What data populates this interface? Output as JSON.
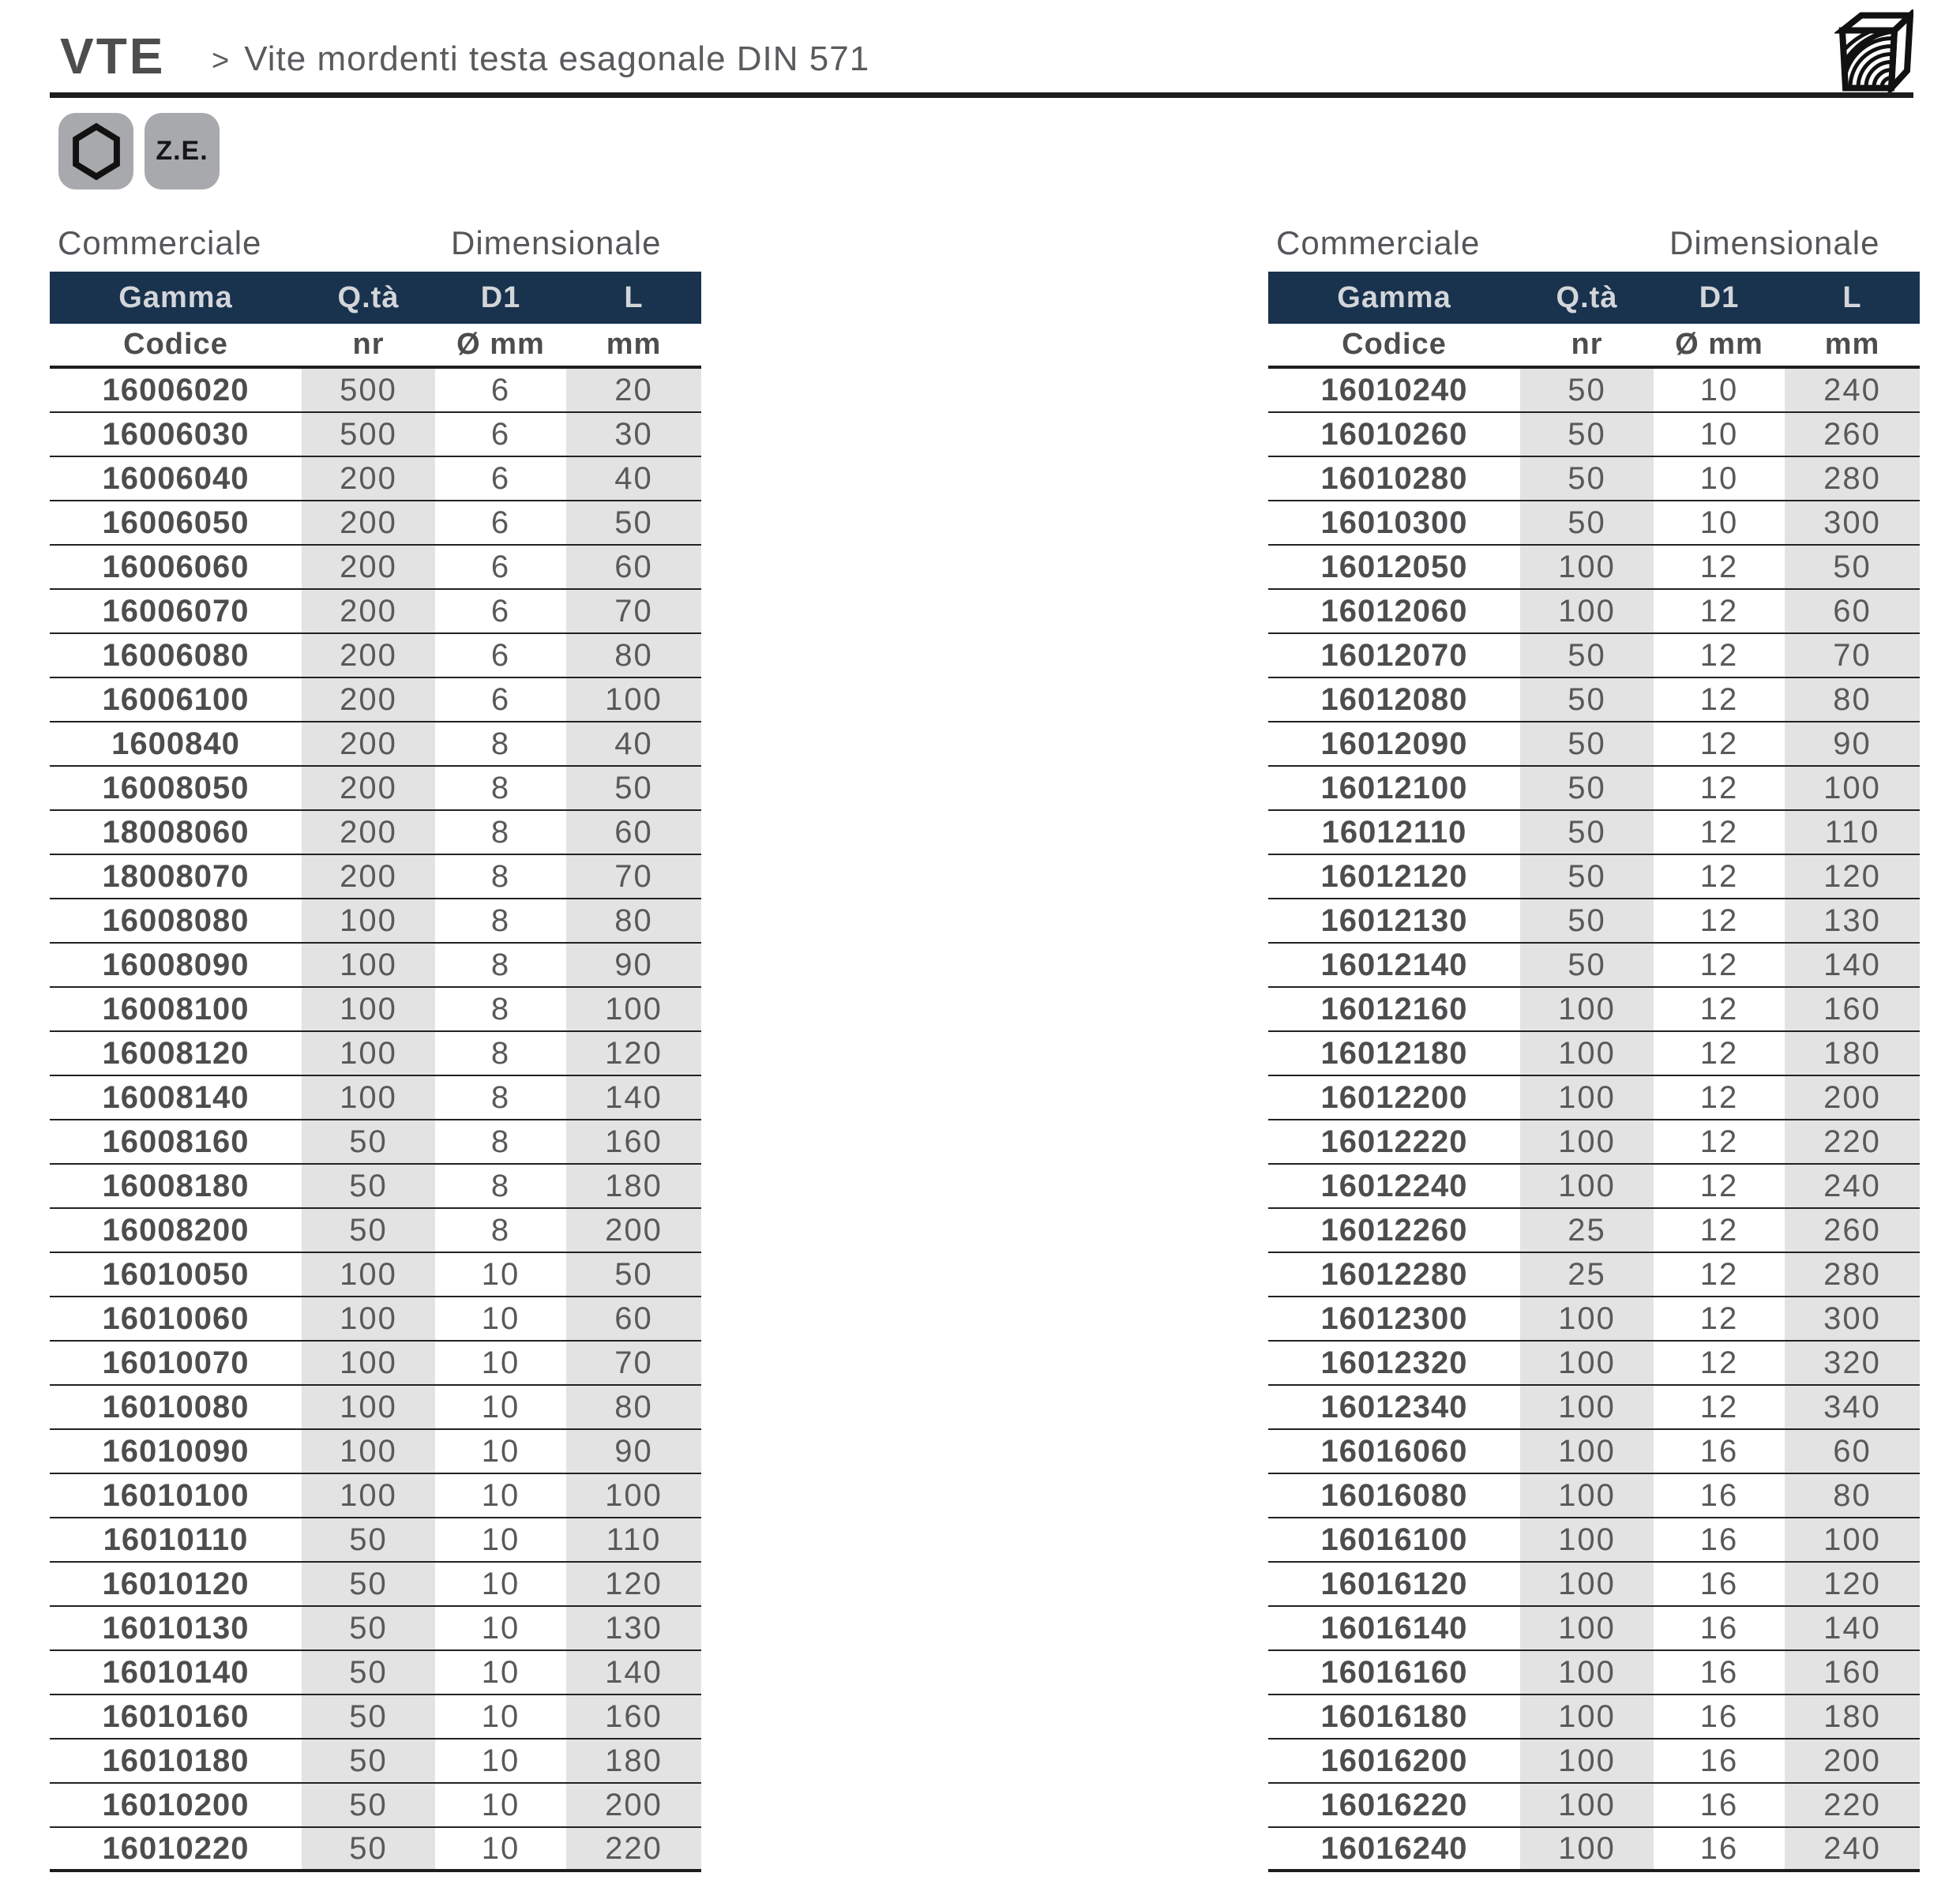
{
  "page": {
    "code": "VTE",
    "separator": ">",
    "title": "Vite mordenti testa esagonale DIN 571"
  },
  "badges": {
    "hex_icon": "hexagon-icon",
    "ze": "Z.E."
  },
  "icons": {
    "material": "wood-cube-icon"
  },
  "colors": {
    "header_bg": "#19324e",
    "header_text": "#d3d6d9",
    "column_shade": "#e3e3e4",
    "line": "#1d1d1b",
    "text": "#58595b",
    "text_bold": "#4c4d4f",
    "badge_bg": "#a7a9ac"
  },
  "table_labels": {
    "commercial": "Commerciale",
    "dimensional": "Dimensionale",
    "col_groups": [
      "Gamma",
      "Q.tà",
      "D1",
      "L"
    ],
    "col_units": [
      "Codice",
      "nr",
      "Ø mm",
      "mm"
    ]
  },
  "tables": [
    {
      "rows": [
        [
          "16006020",
          "500",
          "6",
          "20"
        ],
        [
          "16006030",
          "500",
          "6",
          "30"
        ],
        [
          "16006040",
          "200",
          "6",
          "40"
        ],
        [
          "16006050",
          "200",
          "6",
          "50"
        ],
        [
          "16006060",
          "200",
          "6",
          "60"
        ],
        [
          "16006070",
          "200",
          "6",
          "70"
        ],
        [
          "16006080",
          "200",
          "6",
          "80"
        ],
        [
          "16006100",
          "200",
          "6",
          "100"
        ],
        [
          "1600840",
          "200",
          "8",
          "40"
        ],
        [
          "16008050",
          "200",
          "8",
          "50"
        ],
        [
          "18008060",
          "200",
          "8",
          "60"
        ],
        [
          "18008070",
          "200",
          "8",
          "70"
        ],
        [
          "16008080",
          "100",
          "8",
          "80"
        ],
        [
          "16008090",
          "100",
          "8",
          "90"
        ],
        [
          "16008100",
          "100",
          "8",
          "100"
        ],
        [
          "16008120",
          "100",
          "8",
          "120"
        ],
        [
          "16008140",
          "100",
          "8",
          "140"
        ],
        [
          "16008160",
          "50",
          "8",
          "160"
        ],
        [
          "16008180",
          "50",
          "8",
          "180"
        ],
        [
          "16008200",
          "50",
          "8",
          "200"
        ],
        [
          "16010050",
          "100",
          "10",
          "50"
        ],
        [
          "16010060",
          "100",
          "10",
          "60"
        ],
        [
          "16010070",
          "100",
          "10",
          "70"
        ],
        [
          "16010080",
          "100",
          "10",
          "80"
        ],
        [
          "16010090",
          "100",
          "10",
          "90"
        ],
        [
          "16010100",
          "100",
          "10",
          "100"
        ],
        [
          "16010110",
          "50",
          "10",
          "110"
        ],
        [
          "16010120",
          "50",
          "10",
          "120"
        ],
        [
          "16010130",
          "50",
          "10",
          "130"
        ],
        [
          "16010140",
          "50",
          "10",
          "140"
        ],
        [
          "16010160",
          "50",
          "10",
          "160"
        ],
        [
          "16010180",
          "50",
          "10",
          "180"
        ],
        [
          "16010200",
          "50",
          "10",
          "200"
        ],
        [
          "16010220",
          "50",
          "10",
          "220"
        ]
      ]
    },
    {
      "rows": [
        [
          "16010240",
          "50",
          "10",
          "240"
        ],
        [
          "16010260",
          "50",
          "10",
          "260"
        ],
        [
          "16010280",
          "50",
          "10",
          "280"
        ],
        [
          "16010300",
          "50",
          "10",
          "300"
        ],
        [
          "16012050",
          "100",
          "12",
          "50"
        ],
        [
          "16012060",
          "100",
          "12",
          "60"
        ],
        [
          "16012070",
          "50",
          "12",
          "70"
        ],
        [
          "16012080",
          "50",
          "12",
          "80"
        ],
        [
          "16012090",
          "50",
          "12",
          "90"
        ],
        [
          "16012100",
          "50",
          "12",
          "100"
        ],
        [
          "16012110",
          "50",
          "12",
          "110"
        ],
        [
          "16012120",
          "50",
          "12",
          "120"
        ],
        [
          "16012130",
          "50",
          "12",
          "130"
        ],
        [
          "16012140",
          "50",
          "12",
          "140"
        ],
        [
          "16012160",
          "100",
          "12",
          "160"
        ],
        [
          "16012180",
          "100",
          "12",
          "180"
        ],
        [
          "16012200",
          "100",
          "12",
          "200"
        ],
        [
          "16012220",
          "100",
          "12",
          "220"
        ],
        [
          "16012240",
          "100",
          "12",
          "240"
        ],
        [
          "16012260",
          "25",
          "12",
          "260"
        ],
        [
          "16012280",
          "25",
          "12",
          "280"
        ],
        [
          "16012300",
          "100",
          "12",
          "300"
        ],
        [
          "16012320",
          "100",
          "12",
          "320"
        ],
        [
          "16012340",
          "100",
          "12",
          "340"
        ],
        [
          "16016060",
          "100",
          "16",
          "60"
        ],
        [
          "16016080",
          "100",
          "16",
          "80"
        ],
        [
          "16016100",
          "100",
          "16",
          "100"
        ],
        [
          "16016120",
          "100",
          "16",
          "120"
        ],
        [
          "16016140",
          "100",
          "16",
          "140"
        ],
        [
          "16016160",
          "100",
          "16",
          "160"
        ],
        [
          "16016180",
          "100",
          "16",
          "180"
        ],
        [
          "16016200",
          "100",
          "16",
          "200"
        ],
        [
          "16016220",
          "100",
          "16",
          "220"
        ],
        [
          "16016240",
          "100",
          "16",
          "240"
        ]
      ]
    }
  ]
}
